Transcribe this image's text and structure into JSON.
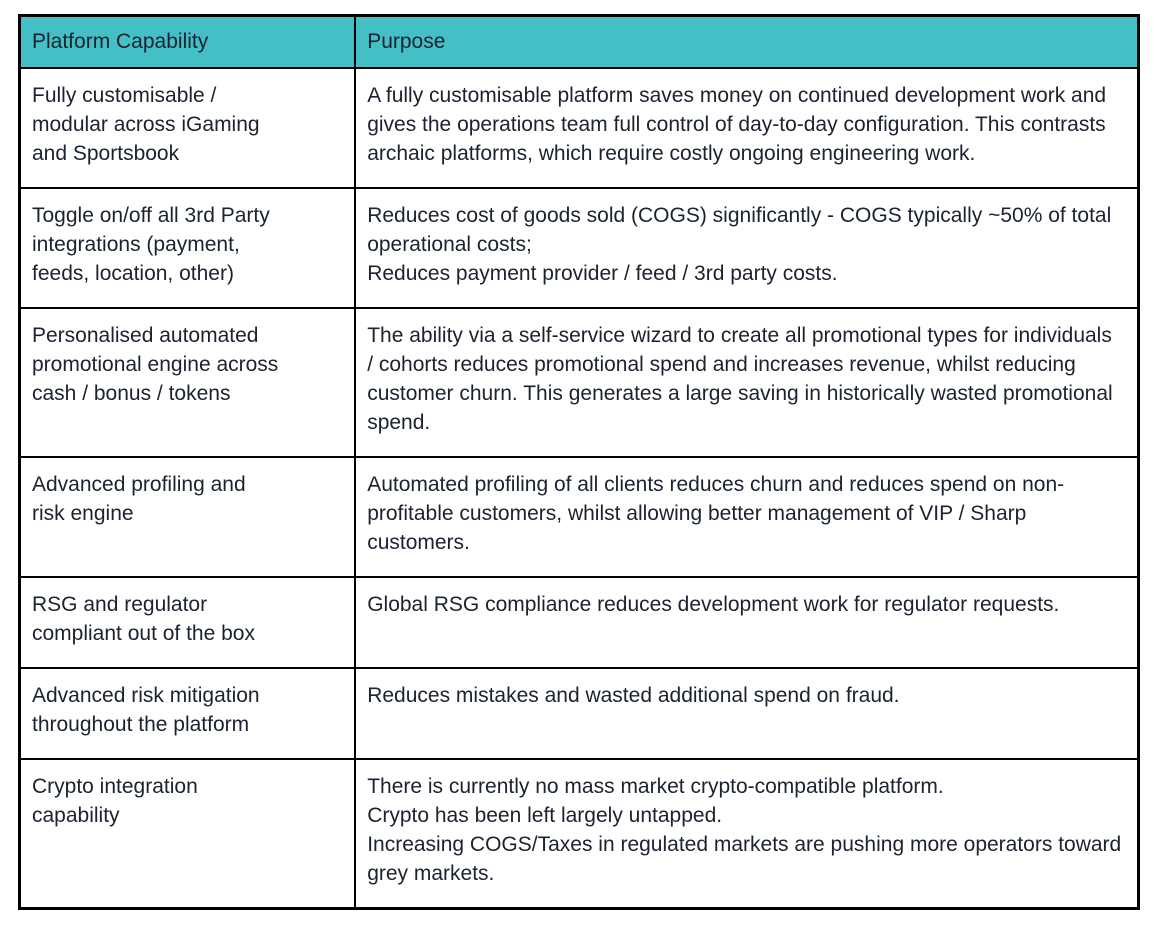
{
  "colors": {
    "header_bg": "#45bfc6",
    "border": "#000000",
    "text": "#1b2230",
    "page_bg": "#ffffff"
  },
  "table": {
    "columns": [
      {
        "label": "Platform Capability"
      },
      {
        "label": "Purpose"
      }
    ],
    "rows": [
      {
        "capability": "Fully customisable /\nmodular across iGaming\nand Sportsbook",
        "purpose": "A fully customisable platform saves money on continued development work and gives the operations team full control of day-to-day configuration. This contrasts archaic platforms, which require costly ongoing engineering work."
      },
      {
        "capability": "Toggle on/off all 3rd Party\nintegrations (payment,\nfeeds, location, other)",
        "purpose": "Reduces cost of goods sold (COGS) significantly - COGS typically ~50% of total operational costs;\nReduces payment provider / feed / 3rd party costs."
      },
      {
        "capability": "Personalised automated\npromotional engine across\ncash / bonus / tokens",
        "purpose": "The ability via a self-service wizard to create all promotional types for individuals / cohorts reduces promotional spend and increases revenue, whilst reducing customer churn. This generates a large saving in historically wasted promotional spend."
      },
      {
        "capability": "Advanced profiling and\nrisk engine",
        "purpose": "Automated profiling of all clients reduces churn and reduces spend on non-profitable customers, whilst allowing better management of VIP / Sharp customers."
      },
      {
        "capability": "RSG and regulator\ncompliant out of the box",
        "purpose": "Global RSG compliance reduces development work for regulator requests."
      },
      {
        "capability": "Advanced risk mitigation\nthroughout the platform",
        "purpose": "Reduces mistakes and wasted additional spend on fraud."
      },
      {
        "capability": "Crypto integration\ncapability",
        "purpose": "There is currently no mass market crypto-compatible platform.\nCrypto has been left largely untapped.\nIncreasing COGS/Taxes in regulated markets are pushing more operators toward grey markets."
      }
    ]
  }
}
